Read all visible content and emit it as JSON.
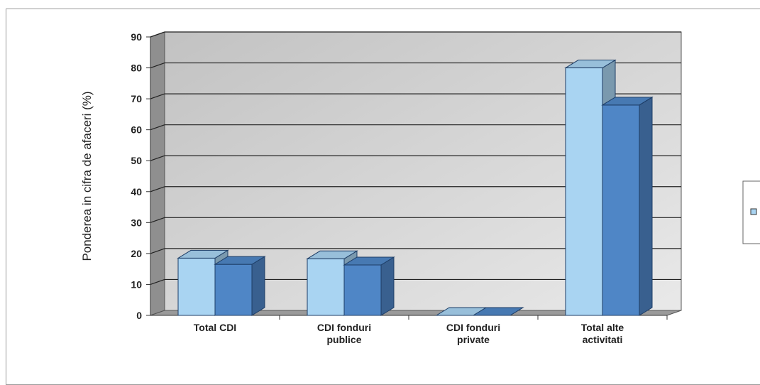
{
  "chart_data": {
    "type": "bar",
    "style": "3d-clustered-column",
    "ylabel": "Ponderea in cifra de afaceri (%)",
    "xlabel": "",
    "ylim": [
      0,
      90
    ],
    "yticks": [
      0,
      10,
      20,
      30,
      40,
      50,
      60,
      70,
      80,
      90
    ],
    "grid": true,
    "legend_position": "right",
    "categories": [
      [
        "Total CDI"
      ],
      [
        "CDI fonduri",
        "publice"
      ],
      [
        "CDI fonduri",
        "private"
      ],
      [
        "Total alte",
        "activitati"
      ]
    ],
    "series": [
      {
        "values": [
          18.5,
          18.3,
          0.0,
          80.0
        ],
        "color": "#a9d4f2"
      },
      {
        "values": [
          16.5,
          16.3,
          0.0,
          68.0
        ],
        "color": "#4f86c6"
      }
    ]
  }
}
